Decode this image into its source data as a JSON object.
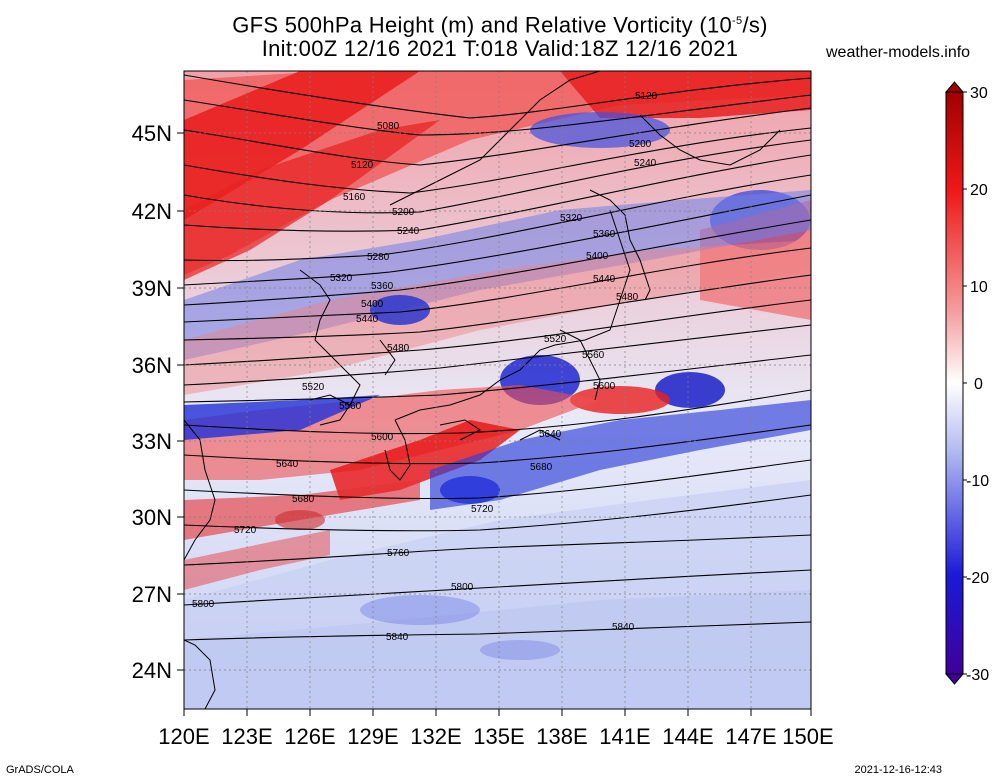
{
  "header": {
    "title_prefix": "GFS 500hPa Height (m) and Relative Vorticity (10",
    "title_exponent": "-5",
    "title_suffix": "/s)",
    "subtitle": "Init:00Z 12/16 2021 T:018 Valid:18Z 12/16 2021",
    "site": "weather-models.info"
  },
  "footer": {
    "left": "GrADS/COLA",
    "right": "2021-12-16-12:43"
  },
  "map": {
    "lon_labels": [
      "120E",
      "123E",
      "126E",
      "129E",
      "132E",
      "135E",
      "138E",
      "141E",
      "144E",
      "147E",
      "150E"
    ],
    "lat_labels": [
      "45N",
      "42N",
      "39N",
      "36N",
      "33N",
      "30N",
      "27N",
      "24N"
    ],
    "contour_labels": [
      "5080",
      "5120",
      "5160",
      "5200",
      "5240",
      "5280",
      "5320",
      "5360",
      "5400",
      "5440",
      "5480",
      "5520",
      "5560",
      "5600",
      "5640",
      "5680",
      "5720",
      "5760",
      "5800",
      "5840",
      "5120",
      "5200",
      "5240",
      "5320",
      "5360",
      "5400",
      "5440",
      "5480",
      "5520",
      "5560",
      "5600",
      "5640",
      "5680",
      "5720",
      "5800",
      "5840"
    ]
  },
  "colorbar": {
    "ticks": [
      "30",
      "20",
      "10",
      "0",
      "-10",
      "-20",
      "-30"
    ],
    "colors": {
      "max": "#a00000",
      "strong_pos": "#f01818",
      "weak_pos": "#f4a0a0",
      "zero": "#ffffff",
      "weak_neg": "#b0b8f0",
      "strong_neg": "#1a1ad8",
      "min": "#40009a"
    }
  }
}
